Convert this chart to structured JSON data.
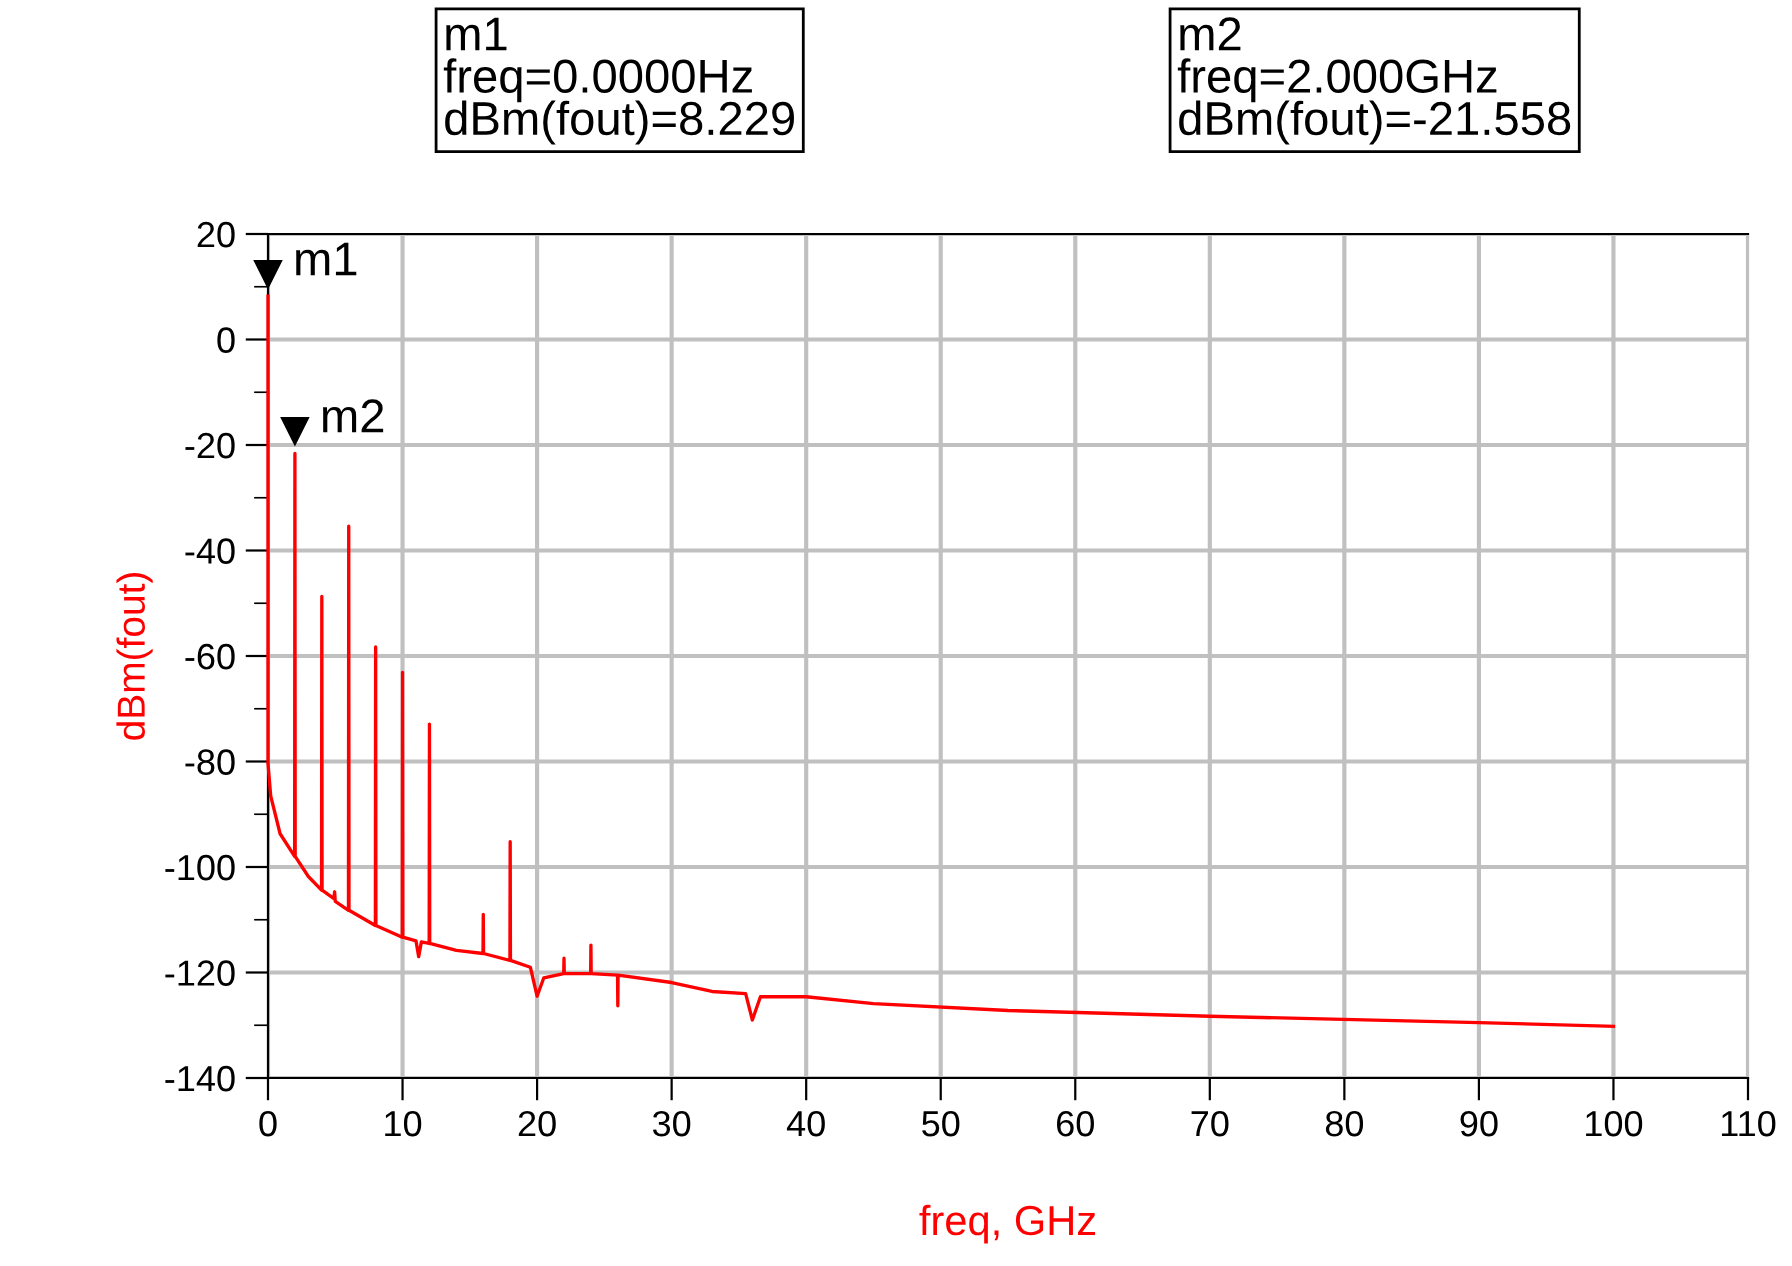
{
  "chart_data": {
    "type": "line",
    "xlabel": "freq, GHz",
    "ylabel": "dBm(fout)",
    "x": [
      0,
      0,
      0.2,
      0.9,
      1.98,
      2,
      2.02,
      3,
      3.98,
      4,
      4.02,
      4.9,
      4.95,
      5.0,
      5.98,
      6,
      6.02,
      7.98,
      8,
      8.02,
      9.98,
      10,
      10.02,
      11,
      11.2,
      11.4,
      11.98,
      12,
      12.02,
      14,
      15.98,
      16,
      16.02,
      17.98,
      18,
      18.02,
      19.5,
      20,
      20.5,
      21.98,
      22,
      22.02,
      23.98,
      24,
      24.02,
      25.98,
      26,
      26.02,
      30,
      33,
      35.5,
      36,
      36.6,
      40,
      45,
      55,
      70,
      90,
      100
    ],
    "series": [
      {
        "color": "#ff0000",
        "values": [
          8.2,
          -80.4,
          -86.5,
          -93.7,
          -98,
          -21.6,
          -98,
          -101.8,
          -104.4,
          -48.7,
          -104.4,
          -106,
          -104.7,
          -106.5,
          -108.2,
          -35.4,
          -108.2,
          -111.1,
          -58.3,
          -111.1,
          -113.3,
          -63.1,
          -113.3,
          -114,
          -117,
          -114.2,
          -114.5,
          -72.9,
          -114.5,
          -115.8,
          -116.4,
          -109,
          -116.4,
          -117.7,
          -95.2,
          -117.7,
          -119,
          -124.5,
          -121,
          -120.2,
          -117.3,
          -120.2,
          -120.2,
          -114.8,
          -120.2,
          -120.5,
          -126.3,
          -120.5,
          -121.9,
          -123.6,
          -124,
          -129,
          -124.6,
          -124.6,
          -125.9,
          -127.2,
          -128.3,
          -129.5,
          -130.2
        ]
      }
    ],
    "xlim": [
      0,
      110
    ],
    "xticks": [
      0,
      10,
      20,
      30,
      40,
      50,
      60,
      70,
      80,
      90,
      100,
      110
    ],
    "ylim": [
      -140,
      20
    ],
    "yticks": [
      -140,
      {
        "value": -130,
        "label": null
      },
      -120,
      {
        "value": -110,
        "label": null
      },
      -100,
      {
        "value": -90,
        "label": null
      },
      -80,
      {
        "value": -70,
        "label": null
      },
      -60,
      {
        "value": -50,
        "label": null
      },
      -40,
      {
        "value": -30,
        "label": null
      },
      -20,
      {
        "value": -10,
        "label": null
      },
      0,
      {
        "value": 10,
        "label": null
      },
      20
    ],
    "grid": true,
    "legend": false,
    "marker": "none",
    "line_style": "solid",
    "annotations": [
      {
        "text": "m1",
        "x": 0,
        "y": 8.229
      },
      {
        "text": "m2",
        "x": 2,
        "y": -21.558
      },
      "m1\nfreq=0.0000Hz\ndBm(fout)=8.229",
      "m2\nfreq=2.000GHz\ndBm(fout)=-21.558"
    ]
  }
}
